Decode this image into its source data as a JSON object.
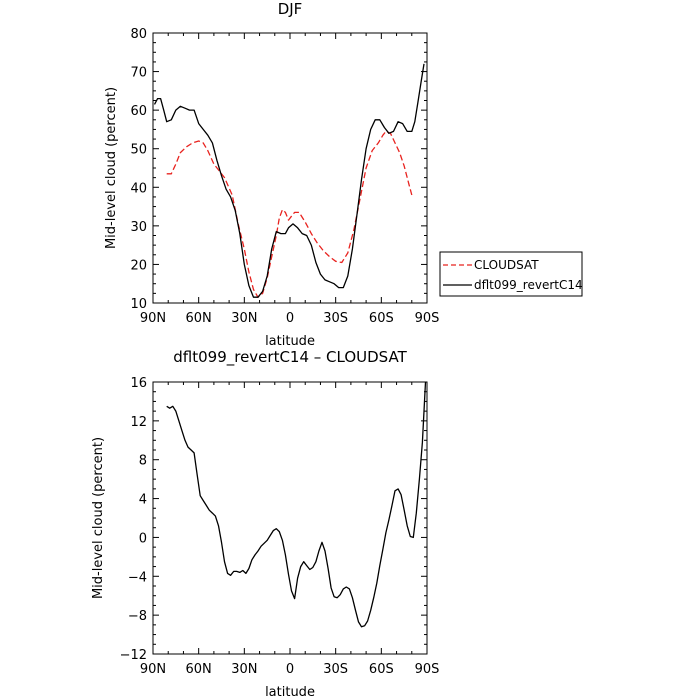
{
  "chart_data": [
    {
      "type": "line",
      "title": "DJF",
      "xlabel": "latitude",
      "ylabel": "Mid-level cloud (percent)",
      "xlim": [
        90,
        -90
      ],
      "ylim": [
        10,
        80
      ],
      "xticks": [
        90,
        60,
        30,
        0,
        -30,
        -60,
        -90
      ],
      "xtick_labels": [
        "90N",
        "60N",
        "30N",
        "0",
        "30S",
        "60S",
        "90S"
      ],
      "yticks": [
        10,
        20,
        30,
        40,
        50,
        60,
        70,
        80
      ],
      "ytick_labels": [
        "10",
        "20",
        "30",
        "40",
        "50",
        "60",
        "70",
        "80"
      ],
      "legend_position": "right",
      "series": [
        {
          "name": "CLOUDSAT",
          "color": "#e8231f",
          "dash": "dashed",
          "x": [
            81,
            78,
            75,
            72,
            68,
            64,
            60,
            57,
            54,
            50,
            47,
            43,
            38,
            34,
            30,
            27,
            24,
            21,
            18,
            15,
            12,
            9,
            7,
            5,
            3,
            1,
            -1,
            -3,
            -6,
            -10,
            -14,
            -18,
            -22,
            -26,
            -30,
            -34,
            -38,
            -42,
            -46,
            -50,
            -54,
            -58,
            -61,
            -63,
            -66,
            -69,
            -72,
            -75,
            -78,
            -80
          ],
          "y": [
            43.5,
            43.5,
            46,
            49,
            50.5,
            51.5,
            52,
            51.5,
            49.5,
            46,
            44.5,
            42.5,
            38,
            30.5,
            24,
            18,
            13.5,
            11.5,
            12.5,
            16.5,
            22,
            27.5,
            32,
            34.2,
            33.5,
            31.5,
            32.5,
            33.5,
            33.5,
            31,
            28,
            25.5,
            23.5,
            22,
            20.8,
            20.5,
            23,
            29,
            37,
            45,
            49.5,
            51.5,
            53.5,
            54.5,
            54,
            51.5,
            49,
            45.5,
            41,
            38
          ]
        },
        {
          "name": "dflt099_revertC14",
          "color": "#000000",
          "dash": "solid",
          "x": [
            89,
            87,
            85,
            83,
            81,
            78,
            75,
            72,
            69,
            66,
            63,
            60,
            57,
            54,
            51,
            48,
            45,
            42,
            39,
            36,
            33,
            30,
            27,
            24,
            21,
            18,
            15,
            12,
            9,
            6,
            3,
            1,
            -2,
            -5,
            -8,
            -11,
            -14,
            -17,
            -20,
            -23,
            -26,
            -29,
            -32,
            -35,
            -38,
            -41,
            -44,
            -47,
            -50,
            -53,
            -56,
            -59,
            -62,
            -65,
            -68,
            -71,
            -74,
            -77,
            -80,
            -82,
            -84,
            -86,
            -88
          ],
          "y": [
            61.5,
            63,
            63,
            60,
            57,
            57.5,
            60,
            61,
            60.5,
            60,
            60,
            56.5,
            55,
            53.5,
            51.5,
            47,
            43,
            39.5,
            37.5,
            34,
            28,
            20,
            14.5,
            11.5,
            11.5,
            13,
            17,
            24,
            28.5,
            28,
            28,
            29.5,
            30.5,
            29.5,
            28,
            27.5,
            25,
            20.5,
            17.5,
            16,
            15.5,
            15,
            14,
            14,
            17,
            24,
            33,
            42,
            50,
            55,
            57.5,
            57.5,
            55.5,
            54,
            54.5,
            57,
            56.5,
            54.5,
            54.5,
            57,
            62,
            67,
            72
          ]
        }
      ]
    },
    {
      "type": "line",
      "title": "dflt099_revertC14 – CLOUDSAT",
      "xlabel": "latitude",
      "ylabel": "Mid-level cloud (percent)",
      "xlim": [
        90,
        -90
      ],
      "ylim": [
        -12,
        16
      ],
      "xticks": [
        90,
        60,
        30,
        0,
        -30,
        -60,
        -90
      ],
      "xtick_labels": [
        "90N",
        "60N",
        "30N",
        "0",
        "30S",
        "60S",
        "90S"
      ],
      "yticks": [
        -12,
        -8,
        -4,
        0,
        4,
        8,
        12,
        16
      ],
      "ytick_labels": [
        "−12",
        "−8",
        "−4",
        "0",
        "4",
        "8",
        "12",
        "16"
      ],
      "series": [
        {
          "color": "#000000",
          "dash": "solid",
          "x": [
            81,
            79,
            77,
            75,
            73,
            71,
            69,
            67,
            65,
            63,
            61,
            59,
            57,
            55,
            53,
            51,
            49,
            47,
            45,
            43,
            41,
            39,
            37,
            35,
            33,
            31,
            29,
            27,
            25,
            23,
            21,
            19,
            17,
            15,
            13,
            11,
            9,
            7,
            5,
            3,
            1,
            -1,
            -3,
            -5,
            -7,
            -9,
            -11,
            -13,
            -15,
            -17,
            -19,
            -21,
            -23,
            -25,
            -27,
            -29,
            -31,
            -33,
            -35,
            -37,
            -39,
            -41,
            -43,
            -45,
            -47,
            -49,
            -51,
            -53,
            -55,
            -57,
            -59,
            -61,
            -63,
            -65,
            -67,
            -69,
            -71,
            -73,
            -75,
            -77,
            -79,
            -81
          ],
          "y": [
            13.5,
            13.3,
            13.5,
            13,
            12,
            11,
            10,
            9.3,
            9,
            8.7,
            6.5,
            4.3,
            3.8,
            3.3,
            2.8,
            2.5,
            2.2,
            1.2,
            -0.5,
            -2.5,
            -3.7,
            -3.9,
            -3.5,
            -3.5,
            -3.6,
            -3.4,
            -3.7,
            -3.2,
            -2.3,
            -1.8,
            -1.4,
            -0.9,
            -0.6,
            -0.3,
            0.2,
            0.7,
            0.9,
            0.6,
            -0.3,
            -1.8,
            -3.8,
            -5.5,
            -6.3,
            -4.2,
            -3,
            -2.5,
            -2.9,
            -3.3,
            -3.1,
            -2.5,
            -1.4,
            -0.5,
            -1.4,
            -3.2,
            -5.2,
            -6.1,
            -6.2,
            -5.9,
            -5.3,
            -5.1,
            -5.3,
            -6.2,
            -7.5,
            -8.7,
            -9.2,
            -9.1,
            -8.6,
            -7.5,
            -6.2,
            -4.7,
            -2.9,
            -1.2,
            0.5,
            1.8,
            3.3,
            4.8,
            5,
            4.4,
            2.8,
            1.2,
            0.1,
            0
          ]
        }
      ],
      "extra_points": {
        "x": [
          -81,
          -83,
          -85,
          -87,
          -89
        ],
        "y": [
          0,
          2.5,
          6,
          9.8,
          16
        ]
      }
    }
  ]
}
